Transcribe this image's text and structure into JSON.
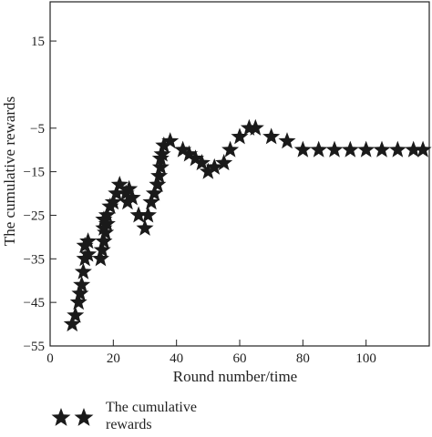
{
  "chart_data": {
    "type": "scatter",
    "xlabel": "Round number/time",
    "ylabel": "The cumulative rewards",
    "xlim": [
      0,
      120
    ],
    "ylim": [
      -55,
      24
    ],
    "x_ticks": [
      0,
      20,
      40,
      60,
      80,
      100
    ],
    "y_ticks": [
      -55,
      -45,
      -35,
      -25,
      -15,
      -5,
      15
    ],
    "grid": false,
    "legend_position": "bottom-left",
    "marker": "star",
    "marker_color": "#1a1a1a",
    "series": [
      {
        "name": "The cumulative rewards",
        "x": [
          7,
          8,
          9,
          9.5,
          10,
          10.5,
          11,
          11,
          12,
          12,
          16,
          16.5,
          17,
          17,
          17,
          17.5,
          18,
          18,
          19,
          20,
          21,
          22,
          24,
          24.5,
          25,
          26,
          28,
          30,
          31,
          32,
          33,
          34,
          34.5,
          35,
          35,
          35.5,
          36,
          38,
          42,
          44,
          46,
          48,
          50,
          52,
          55,
          57,
          60,
          63,
          65,
          70,
          75,
          80,
          85,
          90,
          95,
          100,
          105,
          110,
          115,
          118
        ],
        "y": [
          -50,
          -48,
          -45,
          -43,
          -41,
          -38,
          -35,
          -32,
          -34,
          -31,
          -35,
          -33,
          -31,
          -28,
          -26,
          -29,
          -27,
          -25,
          -23,
          -22,
          -20,
          -18,
          -20,
          -22,
          -19,
          -21,
          -25,
          -28,
          -25,
          -22,
          -20,
          -18,
          -16,
          -14,
          -12,
          -11,
          -9,
          -8,
          -10,
          -11,
          -12,
          -13,
          -15,
          -14,
          -13,
          -10,
          -7,
          -5,
          -5,
          -7,
          -8,
          -10,
          -10,
          -10,
          -10,
          -10,
          -10,
          -10,
          -10,
          -10
        ]
      }
    ]
  }
}
